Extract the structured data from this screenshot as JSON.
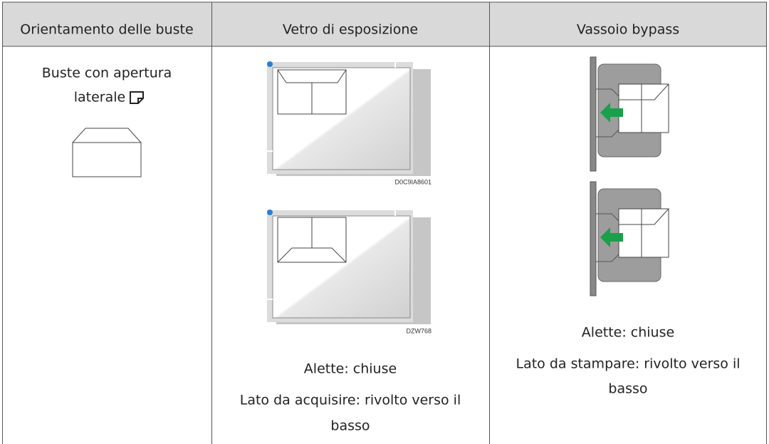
{
  "table": {
    "header": [
      "Orientamento delle buste",
      "Vetro di esposizione",
      "Vassoio bypass"
    ],
    "row": {
      "orientation": {
        "lines": [
          "Buste con apertura",
          "laterale"
        ]
      },
      "glass": {
        "image_codes": [
          "D0C9IA8601",
          "DZW768"
        ],
        "flaps": "Alette: chiuse",
        "side_lines": [
          "Lato da acquisire: rivolto verso il",
          "basso"
        ]
      },
      "bypass": {
        "flaps": "Alette: chiuse",
        "side_lines": [
          "Lato da stampare: rivolto verso il",
          "basso"
        ]
      }
    }
  }
}
